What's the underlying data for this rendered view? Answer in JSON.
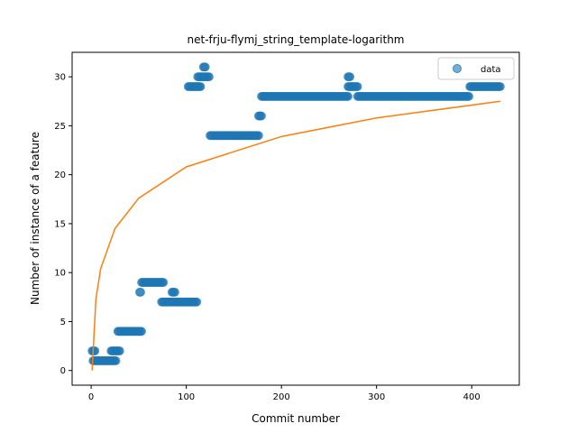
{
  "chart_data": {
    "type": "scatter",
    "title": "net-frju-flymj_string_template-logarithm",
    "xlabel": "Commit number",
    "ylabel": "Number of instance of a feature",
    "xlim": [
      -20,
      450
    ],
    "ylim": [
      -1.5,
      32.5
    ],
    "xticks": [
      0,
      100,
      200,
      300,
      400
    ],
    "yticks": [
      0,
      5,
      10,
      15,
      20,
      25,
      30
    ],
    "grid": false,
    "legend": {
      "position": "top-right",
      "entries": [
        "data"
      ]
    },
    "colors": {
      "data": "#1f77b4",
      "fit": "#ff7f0e"
    },
    "series": [
      {
        "name": "data",
        "kind": "scatter",
        "segments": [
          {
            "x": [
              1,
              4
            ],
            "y": 2
          },
          {
            "x": [
              2,
              26
            ],
            "y": 1
          },
          {
            "x": [
              21,
              30
            ],
            "y": 2
          },
          {
            "x": [
              28,
              53
            ],
            "y": 4
          },
          {
            "x": [
              51,
              52
            ],
            "y": 8
          },
          {
            "x": [
              53,
              76
            ],
            "y": 9
          },
          {
            "x": [
              74,
              99
            ],
            "y": 7
          },
          {
            "x": [
              85,
              88
            ],
            "y": 8
          },
          {
            "x": [
              100,
              111
            ],
            "y": 7
          },
          {
            "x": [
              102,
              115
            ],
            "y": 29
          },
          {
            "x": [
              112,
              124
            ],
            "y": 30
          },
          {
            "x": [
              118,
              120
            ],
            "y": 31
          },
          {
            "x": [
              125,
              176
            ],
            "y": 24
          },
          {
            "x": [
              176,
              179
            ],
            "y": 26
          },
          {
            "x": [
              179,
              270
            ],
            "y": 28
          },
          {
            "x": [
              270,
              272
            ],
            "y": 30
          },
          {
            "x": [
              270,
              280
            ],
            "y": 29
          },
          {
            "x": [
              280,
              397
            ],
            "y": 28
          },
          {
            "x": [
              398,
              430
            ],
            "y": 29
          }
        ]
      },
      {
        "name": "",
        "kind": "line",
        "model": "logarithmic",
        "x_range": [
          1,
          430
        ],
        "points": [
          [
            1,
            0.0
          ],
          [
            5,
            7.3
          ],
          [
            10,
            10.4
          ],
          [
            25,
            14.5
          ],
          [
            50,
            17.6
          ],
          [
            100,
            20.8
          ],
          [
            200,
            23.9
          ],
          [
            300,
            25.8
          ],
          [
            430,
            27.5
          ]
        ]
      }
    ]
  }
}
